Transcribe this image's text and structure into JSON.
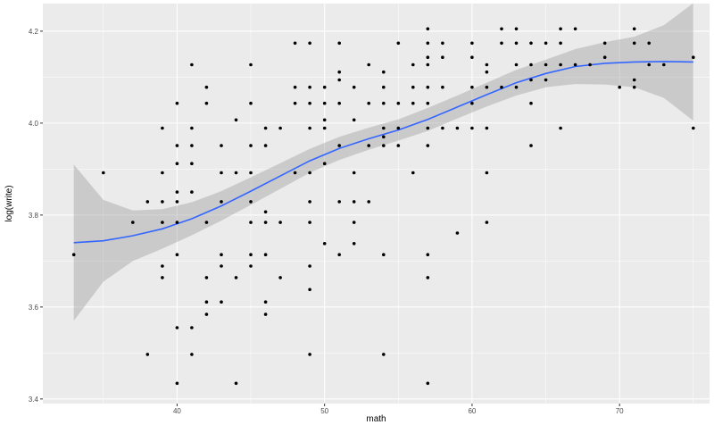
{
  "chart_data": {
    "type": "scatter",
    "title": "",
    "xlabel": "math",
    "ylabel": "log(write)",
    "xlim": [
      30.9,
      76.1
    ],
    "ylim": [
      3.39,
      4.26
    ],
    "x_ticks": [
      40,
      50,
      60,
      70
    ],
    "x_tick_labels": [
      "40",
      "50",
      "60",
      "70"
    ],
    "y_ticks": [
      3.4,
      3.6,
      3.8,
      4.0,
      4.2
    ],
    "y_tick_labels": [
      "3.4",
      "3.6",
      "3.8",
      "4.0",
      "4.2"
    ],
    "grid": true,
    "points": [
      [
        33,
        3.714
      ],
      [
        35,
        3.892
      ],
      [
        37,
        3.784
      ],
      [
        38,
        3.497
      ],
      [
        38,
        3.829
      ],
      [
        39,
        3.664
      ],
      [
        39,
        3.689
      ],
      [
        39,
        3.784
      ],
      [
        39,
        3.829
      ],
      [
        39,
        3.892
      ],
      [
        39,
        3.989
      ],
      [
        40,
        3.434
      ],
      [
        40,
        3.555
      ],
      [
        40,
        3.714
      ],
      [
        40,
        3.784
      ],
      [
        40,
        3.829
      ],
      [
        40,
        3.85
      ],
      [
        40,
        3.912
      ],
      [
        40,
        3.951
      ],
      [
        40,
        4.043
      ],
      [
        41,
        3.497
      ],
      [
        41,
        3.555
      ],
      [
        41,
        3.85
      ],
      [
        41,
        3.912
      ],
      [
        41,
        3.951
      ],
      [
        41,
        3.989
      ],
      [
        41,
        4.127
      ],
      [
        42,
        3.584
      ],
      [
        42,
        3.611
      ],
      [
        42,
        3.664
      ],
      [
        42,
        3.784
      ],
      [
        42,
        4.043
      ],
      [
        42,
        4.078
      ],
      [
        43,
        3.611
      ],
      [
        43,
        3.689
      ],
      [
        43,
        3.714
      ],
      [
        43,
        3.829
      ],
      [
        43,
        3.892
      ],
      [
        43,
        3.951
      ],
      [
        44,
        3.434
      ],
      [
        44,
        3.664
      ],
      [
        44,
        3.892
      ],
      [
        44,
        4.007
      ],
      [
        45,
        3.689
      ],
      [
        45,
        3.714
      ],
      [
        45,
        3.784
      ],
      [
        45,
        3.829
      ],
      [
        45,
        3.892
      ],
      [
        45,
        3.951
      ],
      [
        45,
        4.043
      ],
      [
        45,
        4.127
      ],
      [
        46,
        3.584
      ],
      [
        46,
        3.611
      ],
      [
        46,
        3.714
      ],
      [
        46,
        3.784
      ],
      [
        46,
        3.807
      ],
      [
        46,
        3.951
      ],
      [
        46,
        3.989
      ],
      [
        47,
        3.664
      ],
      [
        47,
        3.784
      ],
      [
        47,
        3.989
      ],
      [
        48,
        3.892
      ],
      [
        48,
        4.043
      ],
      [
        48,
        4.078
      ],
      [
        48,
        4.174
      ],
      [
        49,
        3.497
      ],
      [
        49,
        3.638
      ],
      [
        49,
        3.689
      ],
      [
        49,
        3.784
      ],
      [
        49,
        3.829
      ],
      [
        49,
        3.892
      ],
      [
        49,
        3.989
      ],
      [
        49,
        4.043
      ],
      [
        49,
        4.078
      ],
      [
        49,
        4.174
      ],
      [
        50,
        3.738
      ],
      [
        50,
        3.912
      ],
      [
        50,
        3.989
      ],
      [
        50,
        4.007
      ],
      [
        50,
        4.043
      ],
      [
        50,
        4.078
      ],
      [
        51,
        3.714
      ],
      [
        51,
        3.829
      ],
      [
        51,
        3.951
      ],
      [
        51,
        4.043
      ],
      [
        51,
        4.094
      ],
      [
        51,
        4.111
      ],
      [
        51,
        4.174
      ],
      [
        52,
        3.738
      ],
      [
        52,
        3.784
      ],
      [
        52,
        3.829
      ],
      [
        52,
        3.892
      ],
      [
        52,
        4.007
      ],
      [
        52,
        4.078
      ],
      [
        53,
        3.829
      ],
      [
        53,
        3.951
      ],
      [
        53,
        4.043
      ],
      [
        53,
        4.127
      ],
      [
        54,
        3.497
      ],
      [
        54,
        3.714
      ],
      [
        54,
        3.951
      ],
      [
        54,
        3.97
      ],
      [
        54,
        3.989
      ],
      [
        54,
        4.043
      ],
      [
        54,
        4.078
      ],
      [
        54,
        4.111
      ],
      [
        55,
        3.951
      ],
      [
        55,
        3.989
      ],
      [
        55,
        4.043
      ],
      [
        55,
        4.174
      ],
      [
        56,
        3.892
      ],
      [
        56,
        4.043
      ],
      [
        56,
        4.078
      ],
      [
        56,
        4.127
      ],
      [
        57,
        3.434
      ],
      [
        57,
        3.664
      ],
      [
        57,
        3.714
      ],
      [
        57,
        3.951
      ],
      [
        57,
        3.989
      ],
      [
        57,
        4.043
      ],
      [
        57,
        4.078
      ],
      [
        57,
        4.127
      ],
      [
        57,
        4.143
      ],
      [
        57,
        4.174
      ],
      [
        57,
        4.205
      ],
      [
        58,
        3.989
      ],
      [
        58,
        4.078
      ],
      [
        58,
        4.143
      ],
      [
        58,
        4.174
      ],
      [
        59,
        3.761
      ],
      [
        59,
        3.989
      ],
      [
        60,
        3.989
      ],
      [
        60,
        4.043
      ],
      [
        60,
        4.078
      ],
      [
        60,
        4.143
      ],
      [
        60,
        4.174
      ],
      [
        61,
        3.784
      ],
      [
        61,
        3.892
      ],
      [
        61,
        3.989
      ],
      [
        61,
        4.078
      ],
      [
        61,
        4.111
      ],
      [
        61,
        4.127
      ],
      [
        62,
        4.078
      ],
      [
        62,
        4.174
      ],
      [
        62,
        4.205
      ],
      [
        63,
        4.078
      ],
      [
        63,
        4.127
      ],
      [
        63,
        4.174
      ],
      [
        63,
        4.205
      ],
      [
        64,
        3.951
      ],
      [
        64,
        4.043
      ],
      [
        64,
        4.094
      ],
      [
        64,
        4.127
      ],
      [
        64,
        4.174
      ],
      [
        65,
        4.094
      ],
      [
        65,
        4.127
      ],
      [
        65,
        4.174
      ],
      [
        66,
        3.989
      ],
      [
        66,
        4.127
      ],
      [
        66,
        4.174
      ],
      [
        66,
        4.205
      ],
      [
        67,
        4.127
      ],
      [
        67,
        4.205
      ],
      [
        68,
        4.127
      ],
      [
        69,
        4.143
      ],
      [
        69,
        4.174
      ],
      [
        70,
        4.078
      ],
      [
        71,
        4.078
      ],
      [
        71,
        4.094
      ],
      [
        71,
        4.174
      ],
      [
        71,
        4.205
      ],
      [
        72,
        4.127
      ],
      [
        72,
        4.174
      ],
      [
        73,
        4.127
      ],
      [
        75,
        3.989
      ],
      [
        75,
        4.143
      ]
    ],
    "smooth_line": {
      "color": "#3366ff",
      "x": [
        33,
        35,
        37,
        39,
        41,
        43,
        45,
        47,
        49,
        51,
        53,
        55,
        57,
        59,
        61,
        63,
        65,
        67,
        69,
        71,
        73,
        75
      ],
      "y": [
        3.74,
        3.744,
        3.755,
        3.77,
        3.792,
        3.82,
        3.852,
        3.885,
        3.918,
        3.945,
        3.966,
        3.985,
        4.008,
        4.035,
        4.062,
        4.088,
        4.108,
        4.123,
        4.13,
        4.133,
        4.134,
        4.133
      ],
      "lower": [
        3.57,
        3.655,
        3.7,
        3.727,
        3.756,
        3.788,
        3.822,
        3.857,
        3.892,
        3.92,
        3.942,
        3.962,
        3.983,
        4.01,
        4.036,
        4.06,
        4.078,
        4.085,
        4.084,
        4.078,
        4.055,
        4.005
      ],
      "upper": [
        3.91,
        3.833,
        3.81,
        3.813,
        3.828,
        3.852,
        3.882,
        3.913,
        3.944,
        3.97,
        3.99,
        4.008,
        4.033,
        4.06,
        4.088,
        4.116,
        4.138,
        4.161,
        4.176,
        4.188,
        4.213,
        4.261
      ]
    },
    "colors": {
      "panel_background": "#ebebeb",
      "grid": "#ffffff",
      "points": "#000000",
      "ribbon": "#999999"
    }
  }
}
